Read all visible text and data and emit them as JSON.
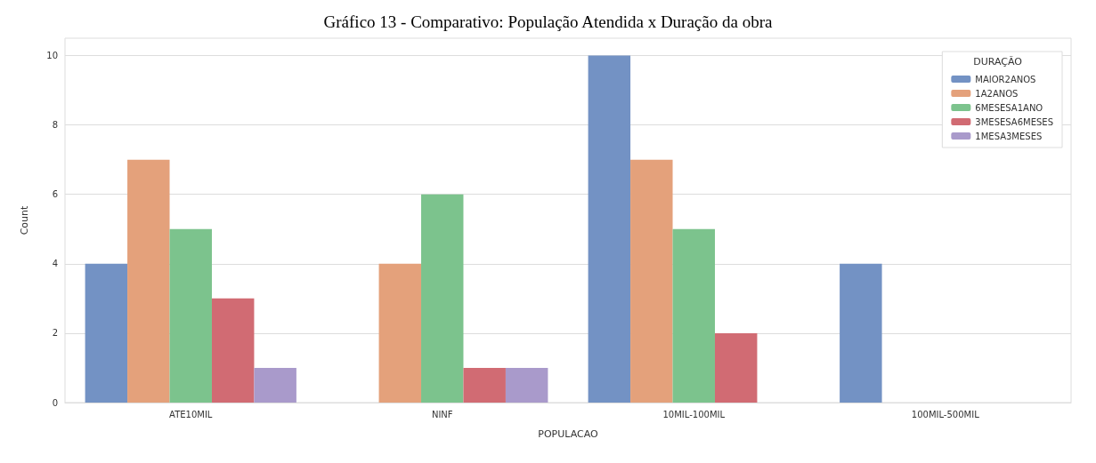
{
  "chart_data": {
    "type": "bar",
    "title": "Gráfico 13 - Comparativo: População Atendida x Duração da obra",
    "xlabel": "POPULACAO",
    "ylabel": "Count",
    "legend_title": "DURAÇÃO",
    "categories": [
      "ATE10MIL",
      "NINF",
      "10MIL-100MIL",
      "100MIL-500MIL"
    ],
    "series": [
      {
        "name": "MAIOR2ANOS",
        "color": "#7392c4",
        "values": [
          4,
          0,
          10,
          4
        ]
      },
      {
        "name": "1A2ANOS",
        "color": "#e4a17b",
        "values": [
          7,
          4,
          7,
          0
        ]
      },
      {
        "name": "6MESESA1ANO",
        "color": "#7cc38d",
        "values": [
          5,
          6,
          5,
          0
        ]
      },
      {
        "name": "3MESESA6MESES",
        "color": "#d16b73",
        "values": [
          3,
          1,
          2,
          0
        ]
      },
      {
        "name": "1MESA3MESES",
        "color": "#a99acb",
        "values": [
          1,
          1,
          0,
          0
        ]
      }
    ],
    "ylim": [
      0,
      10.5
    ],
    "yticks": [
      0,
      2,
      4,
      6,
      8,
      10
    ],
    "grid": true,
    "legend": "top right"
  }
}
